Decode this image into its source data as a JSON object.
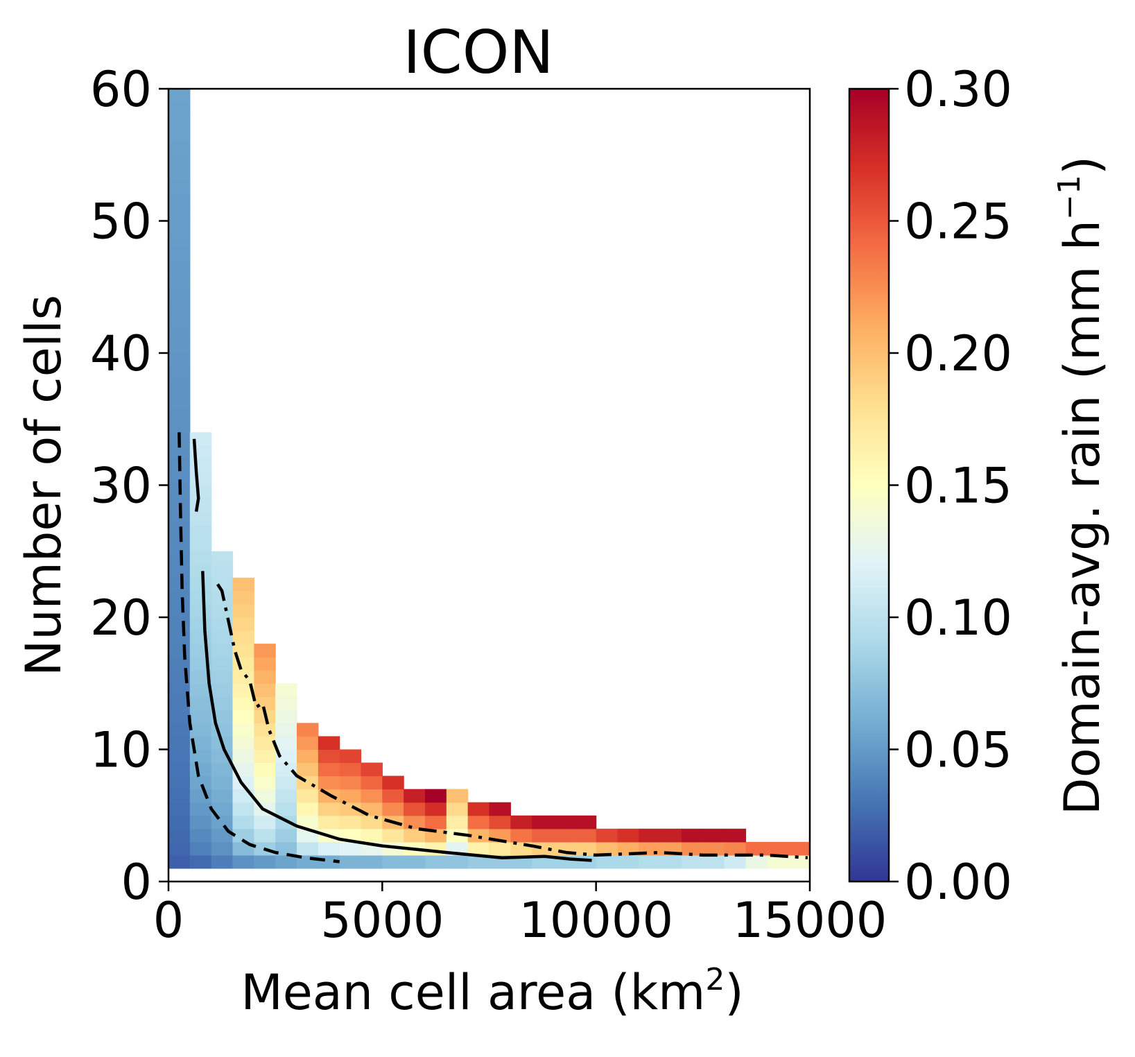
{
  "chart_data": {
    "type": "heatmap",
    "title": "ICON",
    "xlabel": "Mean cell area (km",
    "xlabel_sup": "2",
    "xlabel_tail": ")",
    "ylabel": "Number of cells",
    "colorbar_label": "Domain-avg. rain (mm h",
    "colorbar_label_sup": "−1",
    "colorbar_label_tail": ")",
    "xlim": [
      0,
      15000
    ],
    "ylim": [
      0,
      60
    ],
    "x_ticks": [
      "0",
      "5000",
      "10000",
      "15000"
    ],
    "y_ticks": [
      "0",
      "10",
      "20",
      "30",
      "40",
      "50",
      "60"
    ],
    "colorbar_range": [
      0.0,
      0.3
    ],
    "colorbar_ticks": [
      "0.00",
      "0.05",
      "0.10",
      "0.15",
      "0.20",
      "0.25",
      "0.30"
    ],
    "colormap": "RdYlBu_r",
    "bin_width_x": 500,
    "bin_height_y": 1,
    "bins_description": "Rain value as a function of mean cell area bin (columns) and number-of-cells bin (rows); empty above the boundary",
    "columns": [
      {
        "x0": 0,
        "y_max": 60,
        "v_bottom": 0.02,
        "v_top": 0.055
      },
      {
        "x0": 500,
        "y_max": 34,
        "v_bottom": 0.025,
        "v_top": 0.11
      },
      {
        "x0": 1000,
        "y_max": 25,
        "v_bottom": 0.035,
        "v_top": 0.1
      },
      {
        "x0": 1500,
        "y_max": 23,
        "v_bottom": 0.045,
        "v_top": 0.2
      },
      {
        "x0": 2000,
        "y_max": 18,
        "v_bottom": 0.05,
        "v_top": 0.22
      },
      {
        "x0": 2500,
        "y_max": 15,
        "v_bottom": 0.055,
        "v_top": 0.14
      },
      {
        "x0": 3000,
        "y_max": 12,
        "v_bottom": 0.06,
        "v_top": 0.23
      },
      {
        "x0": 3500,
        "y_max": 11,
        "v_bottom": 0.06,
        "v_top": 0.27
      },
      {
        "x0": 4000,
        "y_max": 10,
        "v_bottom": 0.065,
        "v_top": 0.26
      },
      {
        "x0": 4500,
        "y_max": 9,
        "v_bottom": 0.065,
        "v_top": 0.26
      },
      {
        "x0": 5000,
        "y_max": 8,
        "v_bottom": 0.07,
        "v_top": 0.27
      },
      {
        "x0": 5500,
        "y_max": 7,
        "v_bottom": 0.07,
        "v_top": 0.28
      },
      {
        "x0": 6000,
        "y_max": 7,
        "v_bottom": 0.075,
        "v_top": 0.3
      },
      {
        "x0": 6500,
        "y_max": 7,
        "v_bottom": 0.075,
        "v_top": 0.2
      },
      {
        "x0": 7000,
        "y_max": 6,
        "v_bottom": 0.08,
        "v_top": 0.27
      },
      {
        "x0": 7500,
        "y_max": 6,
        "v_bottom": 0.08,
        "v_top": 0.29
      },
      {
        "x0": 8000,
        "y_max": 5,
        "v_bottom": 0.08,
        "v_top": 0.28
      },
      {
        "x0": 8500,
        "y_max": 5,
        "v_bottom": 0.085,
        "v_top": 0.29
      },
      {
        "x0": 9000,
        "y_max": 5,
        "v_bottom": 0.085,
        "v_top": 0.29
      },
      {
        "x0": 9500,
        "y_max": 5,
        "v_bottom": 0.085,
        "v_top": 0.29
      },
      {
        "x0": 10000,
        "y_max": 4,
        "v_bottom": 0.09,
        "v_top": 0.26
      },
      {
        "x0": 10500,
        "y_max": 4,
        "v_bottom": 0.09,
        "v_top": 0.27
      },
      {
        "x0": 11000,
        "y_max": 4,
        "v_bottom": 0.095,
        "v_top": 0.28
      },
      {
        "x0": 11500,
        "y_max": 4,
        "v_bottom": 0.095,
        "v_top": 0.28
      },
      {
        "x0": 12000,
        "y_max": 4,
        "v_bottom": 0.1,
        "v_top": 0.29
      },
      {
        "x0": 12500,
        "y_max": 4,
        "v_bottom": 0.1,
        "v_top": 0.29
      },
      {
        "x0": 13000,
        "y_max": 4,
        "v_bottom": 0.11,
        "v_top": 0.29
      },
      {
        "x0": 13500,
        "y_max": 3,
        "v_bottom": 0.13,
        "v_top": 0.24
      },
      {
        "x0": 14000,
        "y_max": 3,
        "v_bottom": 0.14,
        "v_top": 0.24
      },
      {
        "x0": 14500,
        "y_max": 3,
        "v_bottom": 0.14,
        "v_top": 0.24
      }
    ],
    "series": [
      {
        "style": "dashed",
        "x": [
          250,
          280,
          320,
          380,
          500,
          700,
          1000,
          1400,
          1900,
          2500,
          3200,
          4000
        ],
        "y": [
          34,
          28,
          22,
          17,
          12,
          8,
          5.5,
          3.8,
          2.8,
          2.2,
          1.8,
          1.5
        ]
      },
      {
        "style": "solid",
        "x": [
          600,
          650,
          700,
          650
        ],
        "y": [
          33.5,
          31,
          29,
          28
        ]
      },
      {
        "style": "solid",
        "x": [
          800,
          850,
          950,
          1100,
          1300,
          1700,
          2200,
          3000,
          4000,
          5000,
          6500,
          7800,
          8800,
          9400,
          9900
        ],
        "y": [
          23.5,
          19,
          15,
          12,
          10,
          7.5,
          5.5,
          4.2,
          3.2,
          2.7,
          2.2,
          1.8,
          1.9,
          1.7,
          1.6
        ]
      },
      {
        "style": "dashdot",
        "x": [
          1150,
          1250,
          1550,
          1700,
          1900,
          2050,
          2200,
          2350,
          2600,
          3000,
          3800,
          4700,
          5800,
          7000,
          8500,
          9300,
          10000,
          11500,
          12500,
          14000,
          14950
        ],
        "y": [
          22.5,
          22,
          17.5,
          16,
          15.2,
          13.2,
          13.5,
          11.5,
          9.5,
          8,
          6.5,
          5,
          4,
          3.5,
          2.7,
          2.2,
          2,
          2.2,
          2,
          2,
          1.8
        ]
      }
    ]
  }
}
